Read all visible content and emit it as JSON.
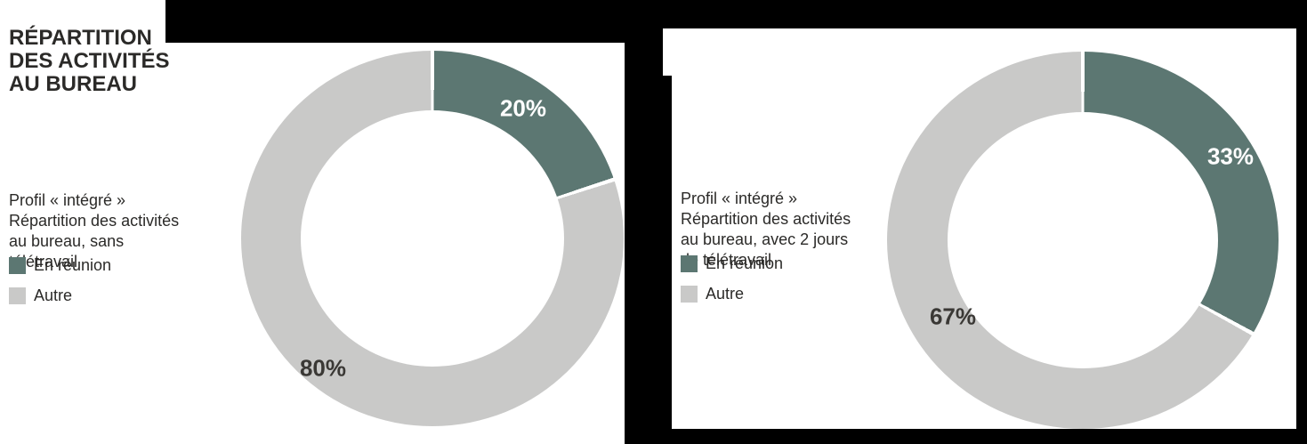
{
  "title": "RÉPARTITION\nDES ACTIVITÉS\nAU BUREAU",
  "colors": {
    "meeting": "#5c7772",
    "other": "#c9c9c8",
    "title_text": "#2b2a28",
    "slice_label_dark": "#3a3835",
    "slice_label_light": "#ffffff",
    "frame_black": "#000000"
  },
  "panels": [
    {
      "description": "Profil « intégré »\nRépartition des activités\nau bureau, sans\ntélétravail",
      "legend": [
        {
          "label": "En réunion"
        },
        {
          "label": "Autre"
        }
      ]
    },
    {
      "description": "Profil « intégré »\nRépartition des activités\nau bureau, avec 2 jours\nde télétravail",
      "legend": [
        {
          "label": "En réunion"
        },
        {
          "label": "Autre"
        }
      ]
    }
  ],
  "chart_data": [
    {
      "type": "pie",
      "subtype": "donut",
      "title": "Profil « intégré » Répartition des activités au bureau, sans télétravail",
      "categories": [
        "En réunion",
        "Autre"
      ],
      "values": [
        20,
        80
      ],
      "unit": "%",
      "slice_colors": [
        "#5c7772",
        "#c9c9c8"
      ],
      "data_labels": [
        "20%",
        "80%"
      ],
      "start_angle_deg": 0,
      "direction": "clockwise",
      "legend_position": "left",
      "donut_hole": true
    },
    {
      "type": "pie",
      "subtype": "donut",
      "title": "Profil « intégré » Répartition des activités au bureau, avec 2 jours de télétravail",
      "categories": [
        "En réunion",
        "Autre"
      ],
      "values": [
        33,
        67
      ],
      "unit": "%",
      "slice_colors": [
        "#5c7772",
        "#c9c9c8"
      ],
      "data_labels": [
        "33%",
        "67%"
      ],
      "start_angle_deg": 0,
      "direction": "clockwise",
      "legend_position": "left",
      "donut_hole": true
    }
  ]
}
